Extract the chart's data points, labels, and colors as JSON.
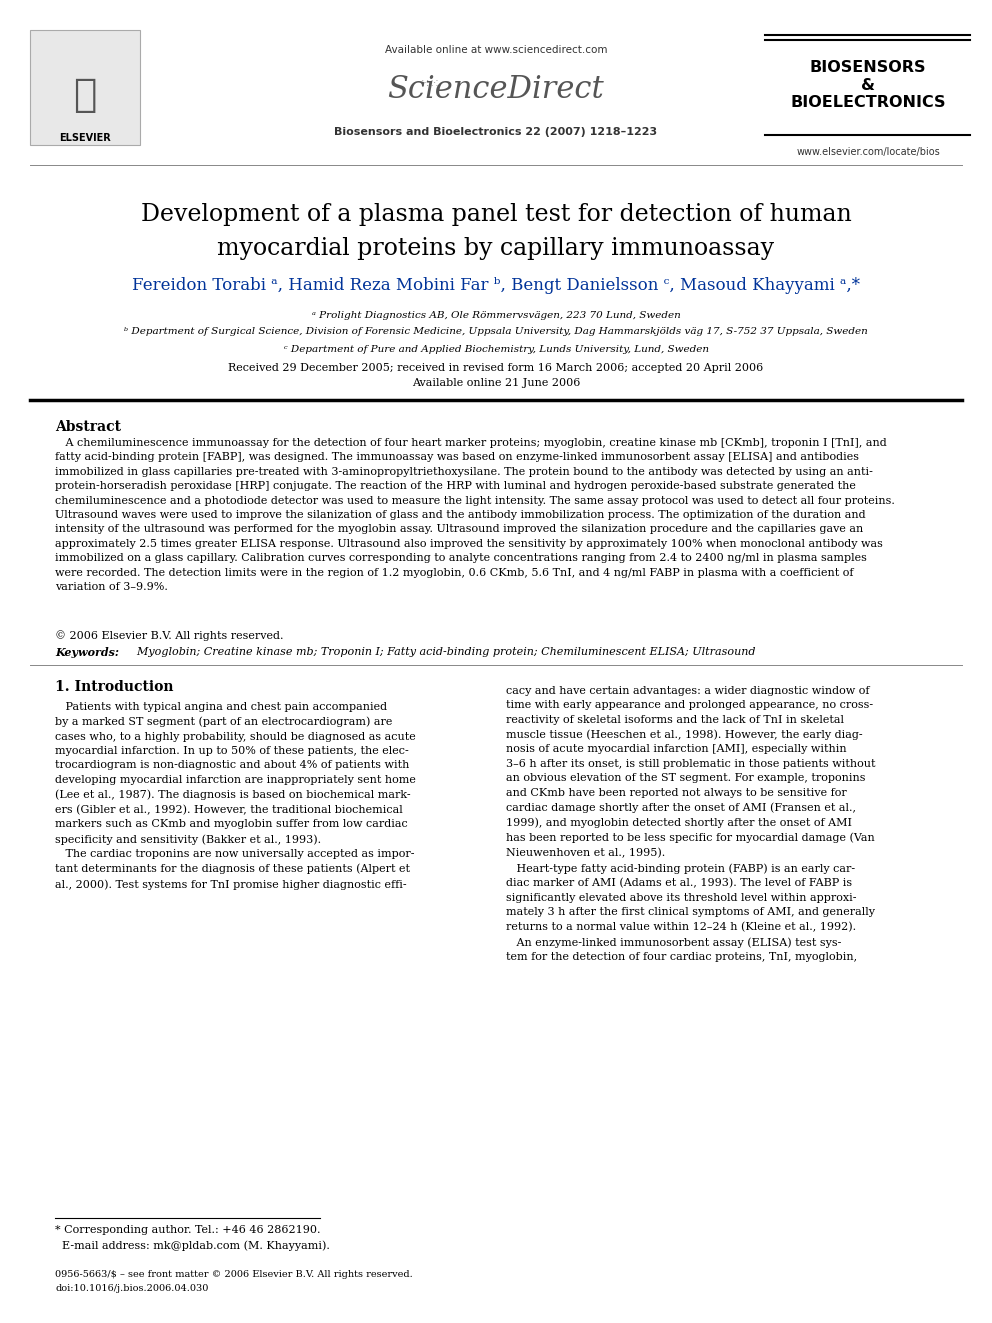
{
  "bg_color": "#ffffff",
  "page_width": 9.92,
  "page_height": 13.23,
  "header_available": "Available online at www.sciencedirect.com",
  "header_journal": "Biosensors and Bioelectronics 22 (2007) 1218–1223",
  "header_sd_logo": "ScienceDirect",
  "header_elsevier": "ELSEVIER",
  "header_bios_logo": "BIOSENSORS\n&\nBIOELECTRONICS",
  "header_website": "www.elsevier.com/locate/bios",
  "title_line1": "Development of a plasma panel test for detection of human",
  "title_line2": "myocardial proteins by capillary immunoassay",
  "author_line": "Fereidon Torabi ᵃ, Hamid Reza Mobini Far ᵇ, Bengt Danielsson ᶜ, Masoud Khayyami ᵃ,*",
  "aff1": "ᵃ Prolight Diagnostics AB, Ole Römmervsvägen, 223 70 Lund, Sweden",
  "aff2": "ᵇ Department of Surgical Science, Division of Forensic Medicine, Uppsala University, Dag Hammarskjölds väg 17, S-752 37 Uppsala, Sweden",
  "aff3": "ᶜ Department of Pure and Applied Biochemistry, Lunds University, Lund, Sweden",
  "received": "Received 29 December 2005; received in revised form 16 March 2006; accepted 20 April 2006",
  "available_online": "Available online 21 June 2006",
  "abstract_head": "Abstract",
  "abstract_body": "   A chemiluminescence immunoassay for the detection of four heart marker proteins; myoglobin, creatine kinase mb [CKmb], troponin I [TnI], and\nfatty acid-binding protein [FABP], was designed. The immunoassay was based on enzyme-linked immunosorbent assay [ELISA] and antibodies\nimmobilized in glass capillaries pre-treated with 3-aminopropyltriethoxysilane. The protein bound to the antibody was detected by using an anti-\nprotein-horseradish peroxidase [HRP] conjugate. The reaction of the HRP with luminal and hydrogen peroxide-based substrate generated the\nchemiluminescence and a photodiode detector was used to measure the light intensity. The same assay protocol was used to detect all four proteins.\nUltrasound waves were used to improve the silanization of glass and the antibody immobilization process. The optimization of the duration and\nintensity of the ultrasound was performed for the myoglobin assay. Ultrasound improved the silanization procedure and the capillaries gave an\napproximately 2.5 times greater ELISA response. Ultrasound also improved the sensitivity by approximately 100% when monoclonal antibody was\nimmobilized on a glass capillary. Calibration curves corresponding to analyte concentrations ranging from 2.4 to 2400 ng/ml in plasma samples\nwere recorded. The detection limits were in the region of 1.2 myoglobin, 0.6 CKmb, 5.6 TnI, and 4 ng/ml FABP in plasma with a coefficient of\nvariation of 3–9.9%.",
  "copyright": "© 2006 Elsevier B.V. All rights reserved.",
  "kw_label": "Keywords:",
  "kw_text": "  Myoglobin; Creatine kinase mb; Troponin I; Fatty acid-binding protein; Chemiluminescent ELISA; Ultrasound",
  "intro_head": "1. Introduction",
  "intro_col1_p1": "   Patients with typical angina and chest pain accompanied\nby a marked ST segment (part of an electrocardiogram) are\ncases who, to a highly probability, should be diagnosed as acute\nmyocardial infarction. In up to 50% of these patients, the elec-\ntrocardiogram is non-diagnostic and about 4% of patients with\ndeveloping myocardial infarction are inappropriately sent home\n(Lee et al., 1987). The diagnosis is based on biochemical mark-\ners (Gibler et al., 1992). However, the traditional biochemical\nmarkers such as CKmb and myoglobin suffer from low cardiac\nspecificity and sensitivity (Bakker et al., 1993).",
  "intro_col1_p2": "   The cardiac troponins are now universally accepted as impor-\ntant determinants for the diagnosis of these patients (Alpert et\nal., 2000). Test systems for TnI promise higher diagnostic effi-",
  "intro_col2_p1": "cacy and have certain advantages: a wider diagnostic window of\ntime with early appearance and prolonged appearance, no cross-\nreactivity of skeletal isoforms and the lack of TnI in skeletal\nmuscle tissue (Heeschen et al., 1998). However, the early diag-\nnosis of acute myocardial infarction [AMI], especially within\n3–6 h after its onset, is still problematic in those patients without\nan obvious elevation of the ST segment. For example, troponins\nand CKmb have been reported not always to be sensitive for\ncardiac damage shortly after the onset of AMI (Fransen et al.,\n1999), and myoglobin detected shortly after the onset of AMI\nhas been reported to be less specific for myocardial damage (Van\nNieuwenhoven et al., 1995).",
  "intro_col2_p2": "   Heart-type fatty acid-binding protein (FABP) is an early car-\ndiac marker of AMI (Adams et al., 1993). The level of FABP is\nsignificantly elevated above its threshold level within approxi-\nmately 3 h after the first clinical symptoms of AMI, and generally\nreturns to a normal value within 12–24 h (Kleine et al., 1992).",
  "intro_col2_p3": "   An enzyme-linked immunosorbent assay (ELISA) test sys-\ntem for the detection of four cardiac proteins, TnI, myoglobin,",
  "footnote_sep_note": "* Corresponding author. Tel.: +46 46 2862190.",
  "footnote_email": "  E-mail address: mk@pldab.com (M. Khayyami).",
  "issn1": "0956-5663/$ – see front matter © 2006 Elsevier B.V. All rights reserved.",
  "issn2": "doi:10.1016/j.bios.2006.04.030",
  "blue": "#003399",
  "black": "#000000",
  "darkgray": "#333333",
  "medgray": "#666666"
}
